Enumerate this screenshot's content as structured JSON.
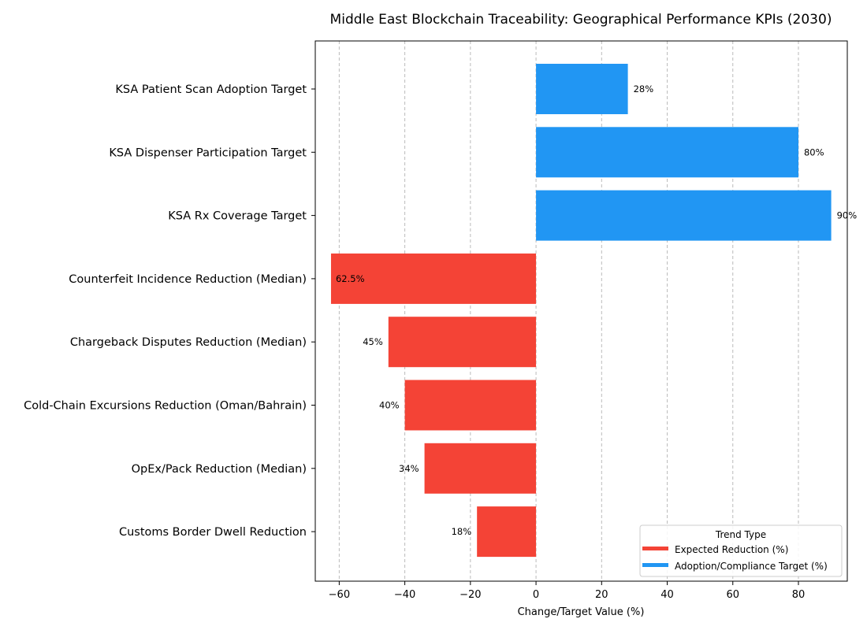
{
  "chart_data": {
    "type": "bar",
    "orientation": "horizontal",
    "title": "Middle East Blockchain Traceability: Geographical Performance KPIs (2030)",
    "xlabel": "Change/Target Value (%)",
    "ylabel": "",
    "xlim": [
      -67.3,
      94.9
    ],
    "xticks": [
      -60,
      -40,
      -20,
      0,
      20,
      40,
      60,
      80
    ],
    "xtick_labels": [
      "−60",
      "−40",
      "−20",
      "0",
      "20",
      "40",
      "60",
      "80"
    ],
    "grid": "x, dashed",
    "categories": [
      "KSA Patient Scan Adoption Target",
      "KSA Dispenser Participation Target",
      "KSA Rx Coverage Target",
      "Counterfeit Incidence Reduction (Median)",
      "Chargeback Disputes Reduction (Median)",
      "Cold-Chain Excursions Reduction (Oman/Bahrain)",
      "OpEx/Pack Reduction (Median)",
      "Customs Border Dwell Reduction"
    ],
    "values": [
      28,
      80,
      90,
      -62.5,
      -45,
      -40,
      -34,
      -18
    ],
    "data_labels": [
      "28%",
      "80%",
      "90%",
      "62.5%",
      "45%",
      "40%",
      "34%",
      "18%"
    ],
    "series_type": [
      "target",
      "target",
      "target",
      "reduction",
      "reduction",
      "reduction",
      "reduction",
      "reduction"
    ],
    "colors": {
      "reduction": "#f44336",
      "target": "#2196f3"
    },
    "legend": {
      "title": "Trend Type",
      "placement": "lower-right",
      "entries": [
        {
          "label": "Expected Reduction (%)",
          "key": "reduction"
        },
        {
          "label": "Adoption/Compliance Target (%)",
          "key": "target"
        }
      ]
    }
  }
}
